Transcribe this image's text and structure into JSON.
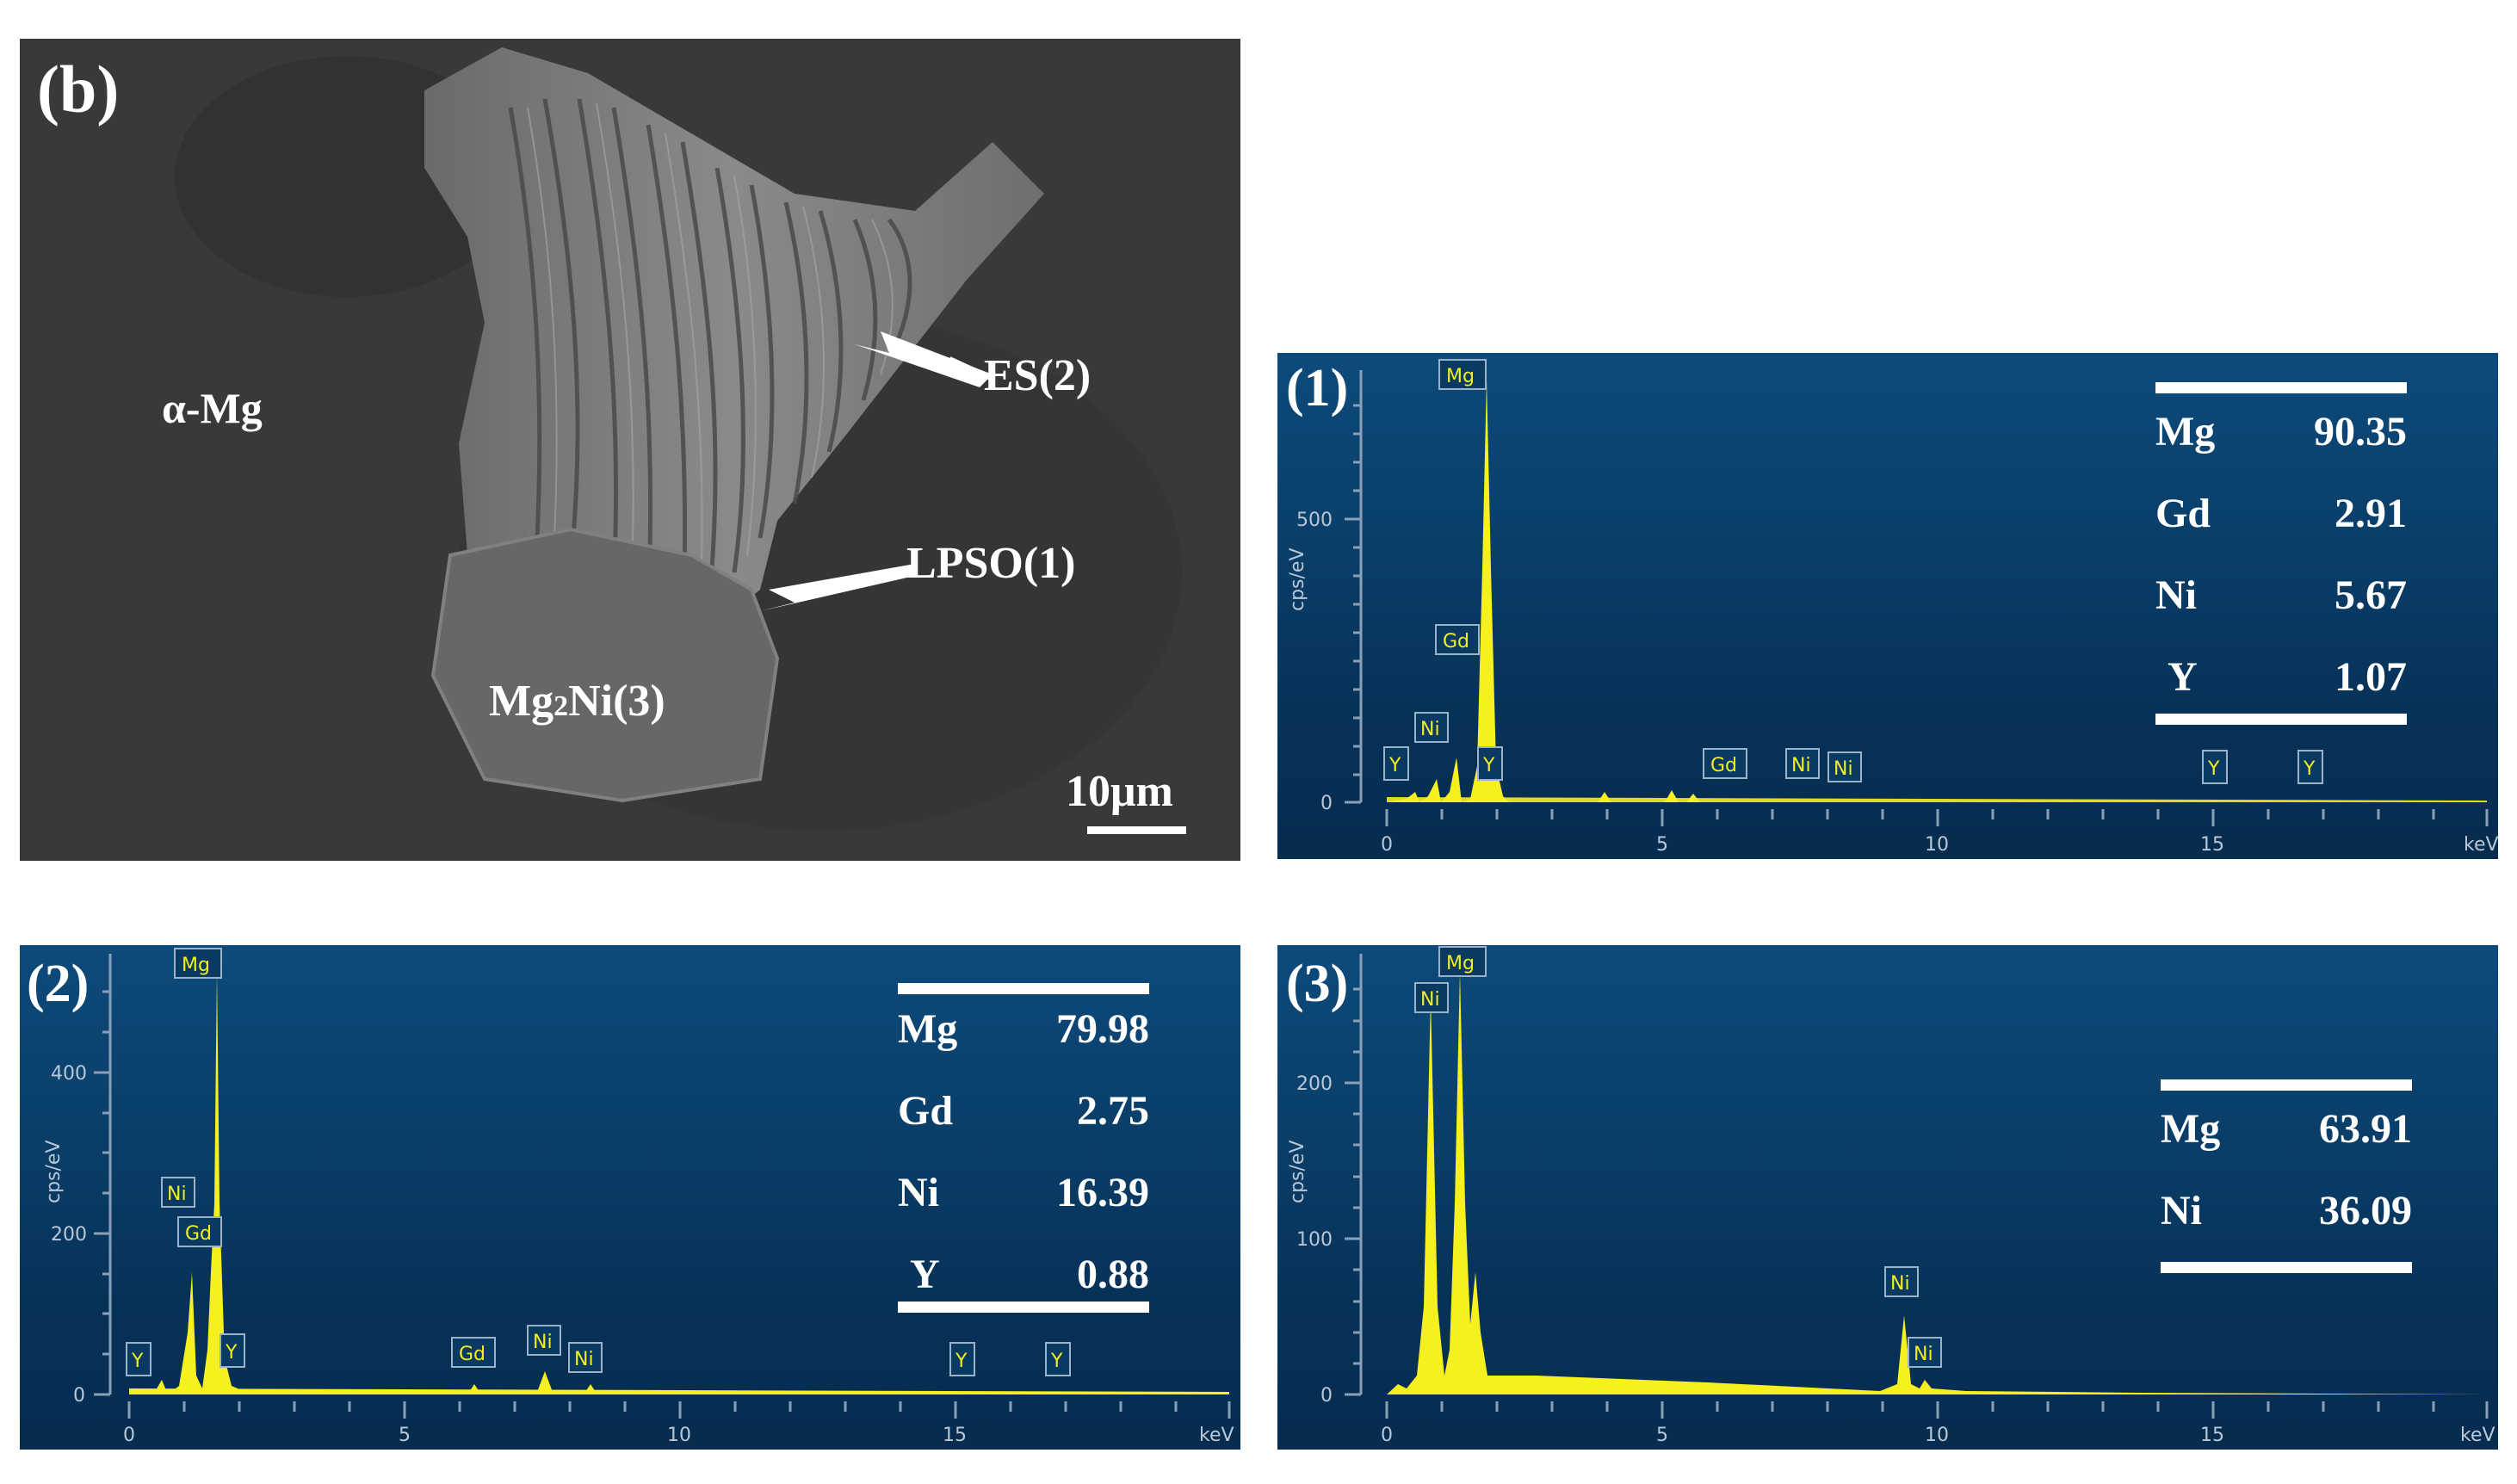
{
  "sem_image": {
    "panel_label": "(b)",
    "labels": {
      "alpha_mg": "α-Mg",
      "es": "ES(2)",
      "lpso": "LPSO(1)",
      "mg2ni_prefix": "Mg",
      "mg2ni_sub": "2",
      "mg2ni_suffix": "Ni(3)"
    },
    "scale_bar": "10μm"
  },
  "spectra": [
    {
      "panel_label": "(1)",
      "ylabel": "cps/eV",
      "xlabel": "keV",
      "y_ticks": [
        "0",
        "500"
      ],
      "x_ticks": [
        "0",
        "5",
        "10",
        "15"
      ],
      "peak_labels": [
        "Mg",
        "Gd",
        "Ni",
        "Y",
        "Y",
        "Gd",
        "Ni",
        "Ni",
        "Y",
        "Y"
      ],
      "composition": [
        {
          "element": "Mg",
          "value": "90.35"
        },
        {
          "element": "Gd",
          "value": "2.91"
        },
        {
          "element": "Ni",
          "value": "5.67"
        },
        {
          "element": "Y",
          "value": "1.07"
        }
      ]
    },
    {
      "panel_label": "(2)",
      "ylabel": "cps/eV",
      "xlabel": "keV",
      "y_ticks": [
        "0",
        "200",
        "400"
      ],
      "x_ticks": [
        "0",
        "5",
        "10",
        "15"
      ],
      "peak_labels": [
        "Mg",
        "Ni",
        "Gd",
        "Y",
        "Y",
        "Gd",
        "Ni",
        "Ni",
        "Y",
        "Y"
      ],
      "composition": [
        {
          "element": "Mg",
          "value": "79.98"
        },
        {
          "element": "Gd",
          "value": "2.75"
        },
        {
          "element": "Ni",
          "value": "16.39"
        },
        {
          "element": "Y",
          "value": "0.88"
        }
      ]
    },
    {
      "panel_label": "(3)",
      "ylabel": "cps/eV",
      "xlabel": "keV",
      "y_ticks": [
        "0",
        "100",
        "200"
      ],
      "x_ticks": [
        "0",
        "5",
        "10",
        "15"
      ],
      "peak_labels": [
        "Mg",
        "Ni",
        "Ni",
        "Ni"
      ],
      "composition": [
        {
          "element": "Mg",
          "value": "63.91"
        },
        {
          "element": "Ni",
          "value": "36.09"
        }
      ]
    }
  ],
  "colors": {
    "spectrum_fill": "#f5f01e",
    "peak_label_text": "#f2ef20",
    "axis_text": "#b9c7d6"
  }
}
